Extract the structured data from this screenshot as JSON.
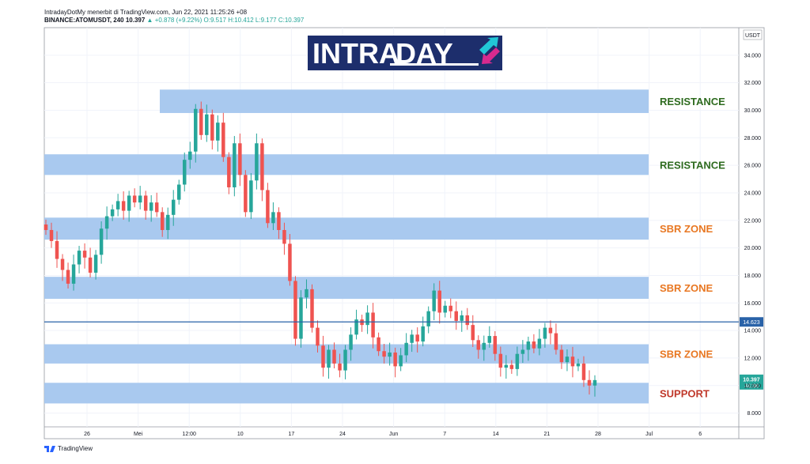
{
  "header": {
    "line1": "IntradayDotMy menerbit di TradingView.com, Jun 22, 2021 11:25:26 +08",
    "symbol": "BINANCE:ATOMUSDT, 240",
    "price": "10.397",
    "change": "▲ +0.878 (+9.22%)",
    "ohlc": "O:9.517 H:10.412 L:9.177 C:10.397"
  },
  "logo": {
    "text_a": "INTRA",
    "text_b": "DAY"
  },
  "footer": {
    "brand": "TradingView"
  },
  "colors": {
    "up": "#26a69a",
    "down": "#ef5350",
    "zone": "#a4c6ee",
    "resistance": "#2e6b1f",
    "sbr": "#e87722",
    "support": "#c0392b",
    "hline": "#2962a8"
  },
  "chart_data": {
    "type": "candlestick",
    "y_axis_label": "USDT",
    "ylim": [
      7.0,
      36.0
    ],
    "yticks": [
      "8.000",
      "10.000",
      "12.000",
      "14.000",
      "16.000",
      "18.000",
      "20.000",
      "22.000",
      "24.000",
      "26.000",
      "28.000",
      "30.000",
      "32.000",
      "34.000"
    ],
    "xticks": [
      "26",
      "Mei",
      "12:00",
      "10",
      "17",
      "24",
      "Jun",
      "7",
      "14",
      "21",
      "28",
      "Jul",
      "6"
    ],
    "zones": [
      {
        "label": "RESISTANCE",
        "low": 29.8,
        "high": 31.5,
        "kind": "resistance",
        "start": 0.19
      },
      {
        "label": "RESISTANCE",
        "low": 25.3,
        "high": 26.8,
        "kind": "resistance",
        "start": 0.0
      },
      {
        "label": "SBR ZONE",
        "low": 20.6,
        "high": 22.2,
        "kind": "sbr",
        "start": 0.0
      },
      {
        "label": "SBR ZONE",
        "low": 16.3,
        "high": 17.9,
        "kind": "sbr",
        "start": 0.0
      },
      {
        "label": "SBR ZONE",
        "low": 11.6,
        "high": 13.0,
        "kind": "sbr",
        "start": 0.0
      },
      {
        "label": "SUPPORT",
        "low": 8.7,
        "high": 10.2,
        "kind": "support",
        "start": 0.0
      }
    ],
    "horizontal_line": {
      "value": 14.623,
      "label": "14.623"
    },
    "last_price": {
      "value": 10.397,
      "label": "10.397",
      "countdown": "34:38"
    },
    "close_path": [
      21.3,
      20.5,
      19.2,
      18.4,
      17.4,
      18.8,
      19.8,
      19.3,
      18.2,
      19.5,
      21.4,
      22.3,
      22.8,
      23.4,
      22.7,
      23.8,
      23.3,
      23.8,
      22.7,
      23.3,
      22.6,
      21.3,
      22.4,
      23.5,
      24.6,
      26.4,
      27.0,
      30.1,
      28.2,
      29.7,
      27.8,
      29.1,
      26.6,
      24.4,
      27.6,
      25.3,
      22.6,
      24.9,
      27.6,
      24.2,
      21.8,
      22.6,
      21.3,
      20.3,
      17.6,
      13.4,
      16.4,
      17.0,
      14.2,
      12.9,
      11.3,
      12.6,
      11.6,
      11.1,
      12.6,
      13.7,
      14.8,
      14.4,
      15.3,
      13.5,
      12.5,
      12.1,
      12.4,
      11.4,
      12.2,
      13.1,
      13.7,
      13.2,
      14.3,
      15.4,
      16.9,
      15.3,
      15.8,
      15.4,
      14.7,
      15.1,
      14.4,
      13.3,
      12.6,
      13.1,
      13.6,
      12.3,
      11.3,
      11.5,
      11.2,
      12.3,
      12.6,
      13.2,
      12.7,
      13.4,
      14.2,
      13.8,
      12.6,
      11.7,
      12.1,
      11.4,
      11.6,
      10.4,
      10.0,
      10.397
    ]
  }
}
